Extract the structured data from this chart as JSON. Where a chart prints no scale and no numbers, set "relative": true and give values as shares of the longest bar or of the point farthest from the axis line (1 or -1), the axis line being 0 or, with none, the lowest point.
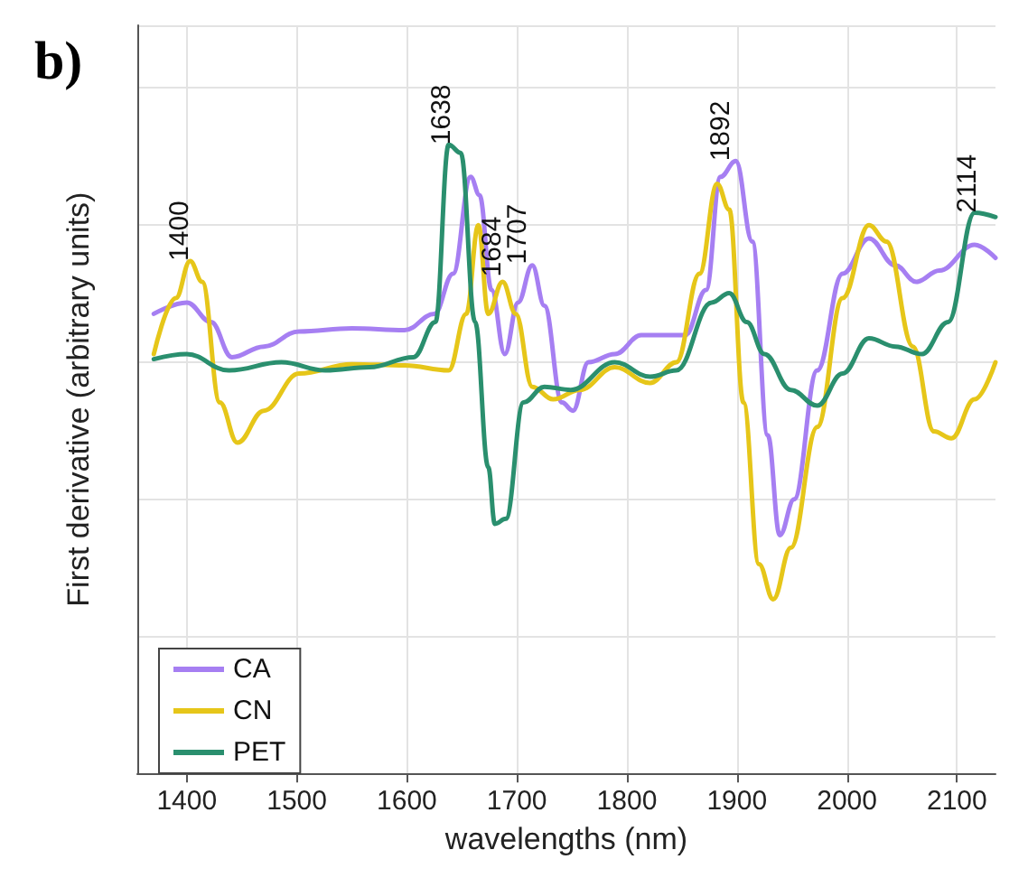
{
  "chart_data": {
    "type": "line",
    "title": "b)",
    "xlabel": "wavelengths (nm)",
    "ylabel": "First derivative (arbitrary units)",
    "relative": true,
    "grid": true,
    "legend": "bottom left",
    "line_style": "solid",
    "marker": "none",
    "xlim": [
      1355,
      2135
    ],
    "xticks": [
      1400,
      1500,
      1600,
      1700,
      1800,
      1900,
      2000,
      2100
    ],
    "series": [
      {
        "name": "CA",
        "color": "#a67ff2",
        "x": [
          1370,
          1400,
          1422,
          1441,
          1470,
          1502,
          1550,
          1598,
          1625,
          1642,
          1658,
          1666,
          1677,
          1689,
          1701,
          1714,
          1725,
          1741,
          1751,
          1765,
          1789,
          1813,
          1853,
          1872,
          1885,
          1899,
          1914,
          1928,
          1939,
          1952,
          1973,
          1996,
          2020,
          2044,
          2063,
          2084,
          2116,
          2135
        ],
        "values": [
          0.731,
          0.749,
          0.718,
          0.662,
          0.679,
          0.703,
          0.708,
          0.705,
          0.731,
          0.795,
          0.949,
          0.92,
          0.769,
          0.667,
          0.749,
          0.808,
          0.744,
          0.59,
          0.577,
          0.654,
          0.667,
          0.697,
          0.697,
          0.769,
          0.949,
          0.974,
          0.846,
          0.538,
          0.379,
          0.436,
          0.641,
          0.795,
          0.851,
          0.808,
          0.782,
          0.8,
          0.841,
          0.82
        ]
      },
      {
        "name": "CN",
        "color": "#e6c619",
        "x": [
          1370,
          1390,
          1403,
          1414,
          1430,
          1446,
          1470,
          1502,
          1550,
          1598,
          1638,
          1654,
          1665,
          1674,
          1687,
          1699,
          1714,
          1733,
          1757,
          1789,
          1821,
          1845,
          1866,
          1882,
          1893,
          1906,
          1920,
          1933,
          1949,
          1973,
          1996,
          2020,
          2036,
          2060,
          2079,
          2095,
          2116,
          2135
        ],
        "values": [
          0.667,
          0.756,
          0.815,
          0.782,
          0.59,
          0.526,
          0.577,
          0.636,
          0.651,
          0.649,
          0.641,
          0.731,
          0.872,
          0.731,
          0.782,
          0.731,
          0.615,
          0.595,
          0.61,
          0.646,
          0.621,
          0.654,
          0.795,
          0.938,
          0.897,
          0.59,
          0.333,
          0.277,
          0.359,
          0.551,
          0.756,
          0.872,
          0.846,
          0.679,
          0.544,
          0.533,
          0.595,
          0.654
        ]
      },
      {
        "name": "PET",
        "color": "#2a8f6e",
        "x": [
          1370,
          1400,
          1438,
          1486,
          1526,
          1566,
          1606,
          1626,
          1638,
          1649,
          1662,
          1674,
          1680,
          1690,
          1706,
          1725,
          1749,
          1789,
          1821,
          1845,
          1877,
          1893,
          1909,
          1925,
          1949,
          1973,
          1996,
          2020,
          2044,
          2068,
          2092,
          2116,
          2135
        ],
        "values": [
          0.659,
          0.667,
          0.641,
          0.654,
          0.641,
          0.646,
          0.662,
          0.718,
          1.0,
          0.987,
          0.718,
          0.487,
          0.397,
          0.405,
          0.59,
          0.615,
          0.61,
          0.654,
          0.631,
          0.641,
          0.749,
          0.764,
          0.718,
          0.667,
          0.61,
          0.585,
          0.636,
          0.692,
          0.679,
          0.667,
          0.718,
          0.892,
          0.885
        ]
      }
    ],
    "annotations": [
      {
        "text": "1400",
        "x": 1400,
        "y": 0.815
      },
      {
        "text": "1638",
        "x": 1638,
        "y": 1.0
      },
      {
        "text": "1684",
        "x": 1684,
        "y": 0.79
      },
      {
        "text": "1707",
        "x": 1707,
        "y": 0.81
      },
      {
        "text": "1892",
        "x": 1892,
        "y": 0.974
      },
      {
        "text": "2114",
        "x": 2116,
        "y": 0.892
      }
    ]
  }
}
